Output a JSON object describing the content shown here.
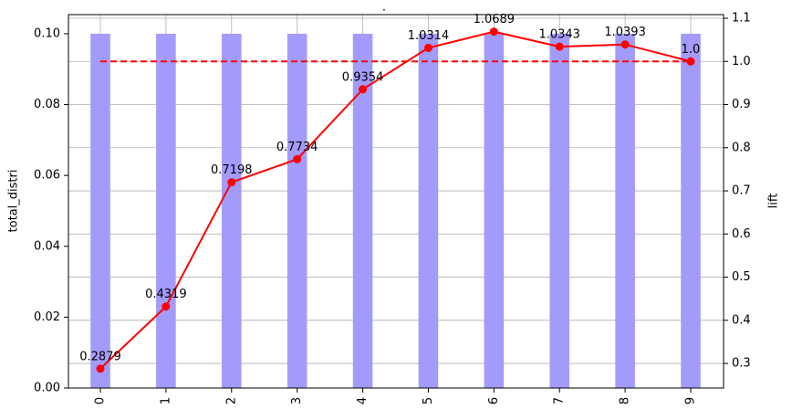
{
  "chart_data": {
    "type": "combo",
    "title": ".",
    "categories": [
      "0",
      "1",
      "2",
      "3",
      "4",
      "5",
      "6",
      "7",
      "8",
      "9"
    ],
    "ylabel": "total_distri",
    "y2label": "lift",
    "ylim": [
      0,
      0.1054
    ],
    "yticks": [
      {
        "value": 0,
        "label": "0.00"
      },
      0.02,
      0.04,
      0.06,
      0.08,
      {
        "value": 0.1,
        "label": "0.10"
      }
    ],
    "y2lim": [
      0.243,
      1.1085
    ],
    "y2ticks": [
      0.3,
      0.4,
      0.5,
      0.6,
      0.7,
      0.8,
      0.9,
      {
        "value": 1,
        "label": "1.0"
      },
      1.1
    ],
    "grid": "y2",
    "series": [
      {
        "type": "bar",
        "color": "#a29bfb",
        "values": [
          0.1,
          0.1,
          0.1,
          0.1,
          0.1,
          0.1,
          0.1,
          0.1,
          0.1,
          0.1
        ]
      },
      {
        "type": "line",
        "axis": "y2",
        "color": "#ff0000",
        "values": [
          0.2879,
          0.4319,
          0.7198,
          0.7734,
          0.9354,
          1.0314,
          1.0689,
          1.0343,
          1.0393,
          1.0
        ],
        "value_labels": [
          "0.2879",
          "0.4319",
          "0.7198",
          "0.7734",
          "0.9354",
          "1.0314",
          "1.0689",
          "1.0343",
          "1.0393",
          "1.0"
        ]
      }
    ],
    "reference_line": {
      "axis": "y2",
      "value": 1,
      "color": "#ff0000",
      "style": "dashed"
    }
  }
}
